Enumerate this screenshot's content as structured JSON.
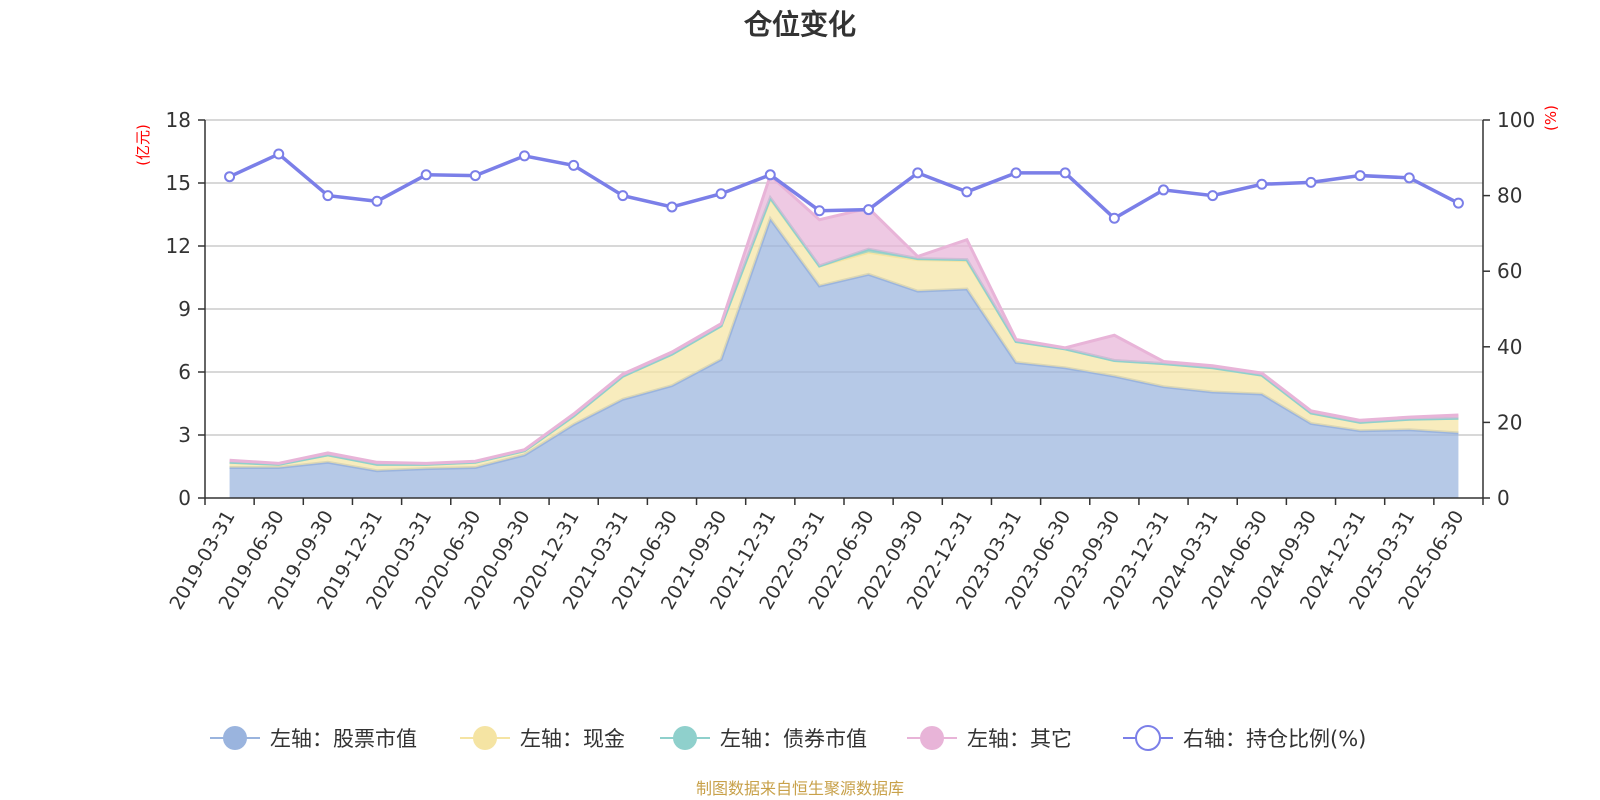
{
  "chart_data": {
    "type": "area",
    "title": "仓位变化",
    "y_left_unit": "(亿元)",
    "y_right_unit": "(%)",
    "y_left_ticks": [
      "0",
      "3",
      "6",
      "9",
      "12",
      "15",
      "18"
    ],
    "y_right_ticks": [
      "0",
      "20",
      "40",
      "60",
      "80",
      "100"
    ],
    "ylim_left": [
      0,
      18
    ],
    "ylim_right": [
      0,
      100
    ],
    "x": [
      "2019-03-31",
      "2019-06-30",
      "2019-09-30",
      "2019-12-31",
      "2020-03-31",
      "2020-06-30",
      "2020-09-30",
      "2020-12-31",
      "2021-03-31",
      "2021-06-30",
      "2021-09-30",
      "2021-12-31",
      "2022-03-31",
      "2022-06-30",
      "2022-09-30",
      "2022-12-31",
      "2023-03-31",
      "2023-06-30",
      "2023-09-30",
      "2023-12-31",
      "2024-03-31",
      "2024-06-30",
      "2024-09-30",
      "2024-12-31",
      "2025-03-31",
      "2025-06-30"
    ],
    "stacked": true,
    "series": [
      {
        "name": "左轴：股票市值",
        "axis": "left",
        "type": "area",
        "color": "#9ab4de",
        "values": [
          1.45,
          1.45,
          1.7,
          1.3,
          1.4,
          1.45,
          2.05,
          3.5,
          4.7,
          5.35,
          6.6,
          13.3,
          10.1,
          10.65,
          9.85,
          9.95,
          6.45,
          6.2,
          5.8,
          5.3,
          5.05,
          4.95,
          3.55,
          3.2,
          3.25,
          3.1
        ]
      },
      {
        "name": "左轴：现金",
        "axis": "left",
        "type": "area",
        "color": "#f5e4a3",
        "values": [
          0.25,
          0.15,
          0.35,
          0.3,
          0.2,
          0.25,
          0.2,
          0.4,
          1.1,
          1.5,
          1.6,
          0.95,
          0.95,
          1.05,
          1.5,
          1.35,
          1.0,
          0.9,
          0.75,
          1.1,
          1.15,
          0.9,
          0.5,
          0.4,
          0.5,
          0.7
        ]
      },
      {
        "name": "左轴：债券市值",
        "axis": "left",
        "type": "area",
        "color": "#8fd0cc",
        "values": [
          0,
          0,
          0,
          0,
          0,
          0,
          0,
          0,
          0,
          0,
          0,
          0.05,
          0.0,
          0.15,
          0.05,
          0.05,
          0,
          0,
          0,
          0,
          0,
          0,
          0,
          0,
          0,
          0
        ]
      },
      {
        "name": "左轴：其它",
        "axis": "left",
        "type": "area",
        "color": "#e8b4d8",
        "values": [
          0.1,
          0.05,
          0.1,
          0.1,
          0.05,
          0.05,
          0.05,
          0.1,
          0.1,
          0.1,
          0.1,
          1.05,
          2.2,
          1.95,
          0.1,
          0.95,
          0.1,
          0.05,
          1.2,
          0.1,
          0.1,
          0.1,
          0.1,
          0.1,
          0.1,
          0.15
        ]
      },
      {
        "name": "右轴：持仓比例(%)",
        "axis": "right",
        "type": "line",
        "color": "#7b7fe8",
        "values": [
          85,
          91,
          80,
          78.5,
          85.5,
          85.3,
          90.5,
          88,
          80,
          77,
          80.5,
          85.5,
          76,
          76.3,
          86,
          81,
          86,
          86,
          74,
          81.5,
          80,
          83,
          83.5,
          85.3,
          84.7,
          78
        ]
      }
    ],
    "legend_position": "bottom",
    "grid": true
  },
  "footer": {
    "source": "制图数据来自恒生聚源数据库"
  }
}
